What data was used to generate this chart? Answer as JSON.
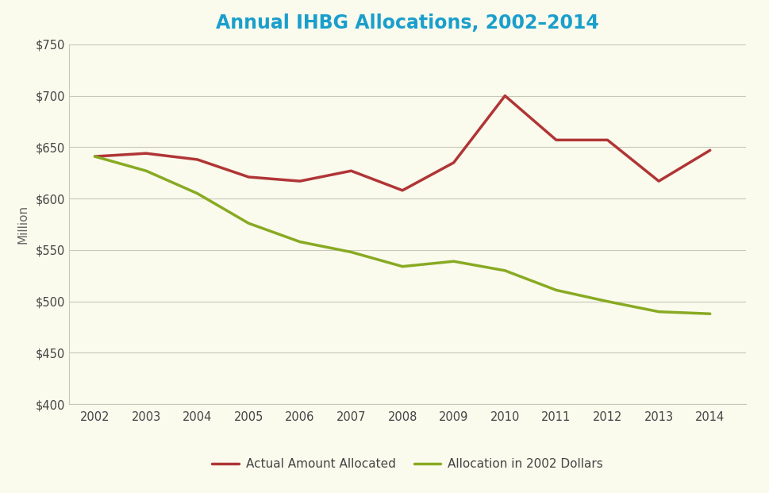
{
  "title": "Annual IHBG Allocations, 2002–2014",
  "ylabel": "Million",
  "years": [
    2002,
    2003,
    2004,
    2005,
    2006,
    2007,
    2008,
    2009,
    2010,
    2011,
    2012,
    2013,
    2014
  ],
  "actual": [
    641,
    644,
    638,
    621,
    617,
    627,
    608,
    635,
    700,
    657,
    657,
    617,
    647
  ],
  "constant": [
    641,
    627,
    605,
    576,
    558,
    548,
    534,
    539,
    530,
    511,
    500,
    490,
    488
  ],
  "actual_color": "#b03535",
  "constant_color": "#88aa22",
  "background_color": "#fafaed",
  "grid_color": "#c8c8b8",
  "title_color": "#1a9fcc",
  "axis_label_color": "#666666",
  "tick_color": "#444444",
  "legend_actual": "Actual Amount Allocated",
  "legend_constant": "Allocation in 2002 Dollars",
  "ylim_min": 400,
  "ylim_max": 750,
  "yticks": [
    400,
    450,
    500,
    550,
    600,
    650,
    700,
    750
  ],
  "line_width": 2.5
}
